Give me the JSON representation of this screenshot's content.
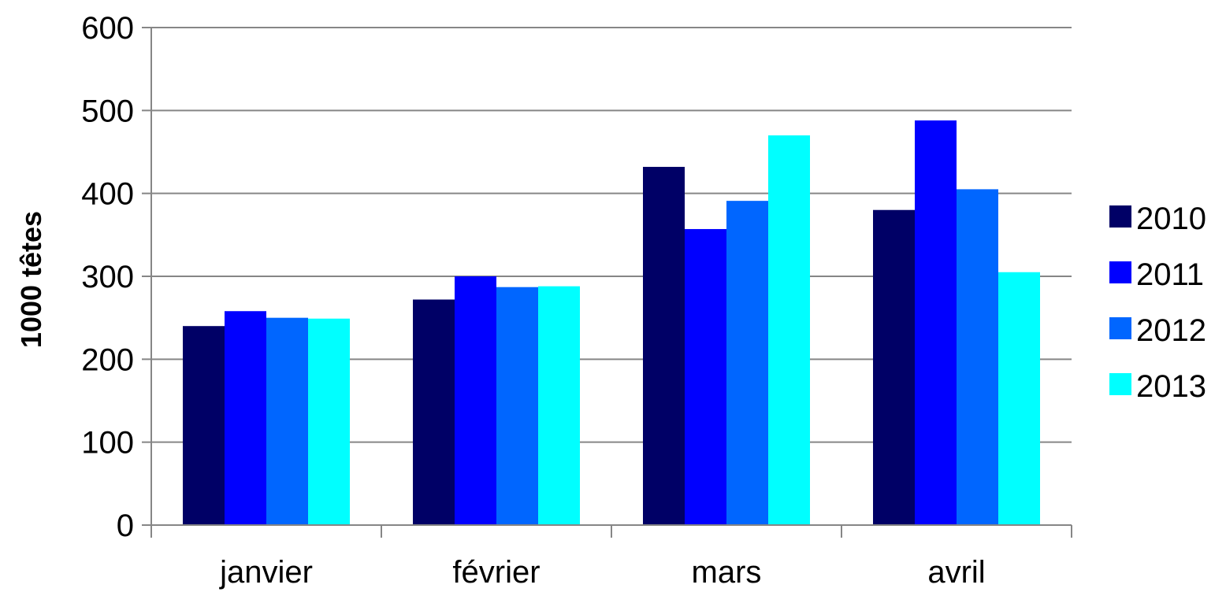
{
  "chart_data": {
    "type": "bar",
    "title": "",
    "xlabel": "",
    "ylabel": "1000 têtes",
    "categories": [
      "janvier",
      "février",
      "mars",
      "avril"
    ],
    "series": [
      {
        "name": "2010",
        "color": "#000066",
        "values": [
          240,
          272,
          432,
          380
        ]
      },
      {
        "name": "2011",
        "color": "#0000FF",
        "values": [
          258,
          300,
          357,
          488
        ]
      },
      {
        "name": "2012",
        "color": "#0066FF",
        "values": [
          250,
          287,
          391,
          405
        ]
      },
      {
        "name": "2013",
        "color": "#00FFFF",
        "values": [
          249,
          288,
          470,
          305
        ]
      }
    ],
    "ylim": [
      0,
      600
    ],
    "yticks": [
      0,
      100,
      200,
      300,
      400,
      500,
      600
    ],
    "grid": true,
    "legend": "right"
  }
}
